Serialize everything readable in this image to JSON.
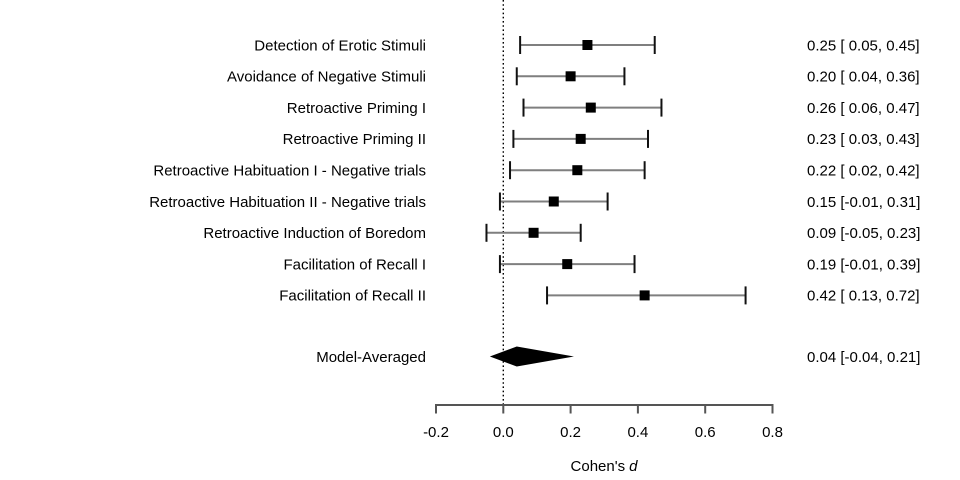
{
  "chart_data": {
    "type": "forest",
    "xlabel_regular": "Cohen's",
    "xlabel_italic": "d",
    "xlim": [
      -0.2,
      0.8
    ],
    "x_ticks": [
      -0.2,
      0.0,
      0.2,
      0.4,
      0.6,
      0.8
    ],
    "x_tick_labels": [
      "-0.2",
      "0.0",
      "0.2",
      "0.4",
      "0.6",
      "0.8"
    ],
    "reference_line": 0.0,
    "grid": false,
    "studies": [
      {
        "label": "Detection of Erotic Stimuli",
        "estimate": 0.25,
        "lower": 0.05,
        "upper": 0.45,
        "value_text": "0.25 [ 0.05, 0.45]"
      },
      {
        "label": "Avoidance of Negative Stimuli",
        "estimate": 0.2,
        "lower": 0.04,
        "upper": 0.36,
        "value_text": "0.20 [ 0.04, 0.36]"
      },
      {
        "label": "Retroactive Priming I",
        "estimate": 0.26,
        "lower": 0.06,
        "upper": 0.47,
        "value_text": "0.26 [ 0.06, 0.47]"
      },
      {
        "label": "Retroactive Priming II",
        "estimate": 0.23,
        "lower": 0.03,
        "upper": 0.43,
        "value_text": "0.23 [ 0.03, 0.43]"
      },
      {
        "label": "Retroactive Habituation I - Negative trials",
        "estimate": 0.22,
        "lower": 0.02,
        "upper": 0.42,
        "value_text": "0.22 [ 0.02, 0.42]"
      },
      {
        "label": "Retroactive Habituation II - Negative trials",
        "estimate": 0.15,
        "lower": -0.01,
        "upper": 0.31,
        "value_text": "0.15 [-0.01, 0.31]"
      },
      {
        "label": "Retroactive Induction of Boredom",
        "estimate": 0.09,
        "lower": -0.05,
        "upper": 0.23,
        "value_text": "0.09 [-0.05, 0.23]"
      },
      {
        "label": "Facilitation of Recall I",
        "estimate": 0.19,
        "lower": -0.01,
        "upper": 0.39,
        "value_text": "0.19 [-0.01, 0.39]"
      },
      {
        "label": "Facilitation of Recall II",
        "estimate": 0.42,
        "lower": 0.13,
        "upper": 0.72,
        "value_text": "0.42 [ 0.13, 0.72]"
      }
    ],
    "summary": {
      "label": "Model-Averaged",
      "estimate": 0.04,
      "lower": -0.04,
      "upper": 0.21,
      "value_text": "0.04 [-0.04, 0.21]"
    }
  },
  "colors": {
    "background": "#ffffff",
    "ci_line": "#7f7f7f",
    "ci_cap": "#111111",
    "marker": "#000000",
    "diamond": "#000000",
    "axis": "#555555",
    "reference_line": "#000000",
    "text": "#000000"
  }
}
